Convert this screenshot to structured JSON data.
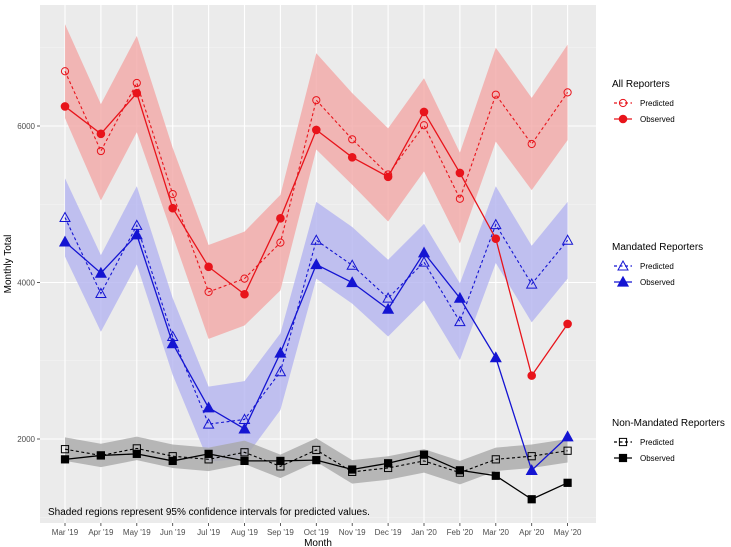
{
  "chart_data": {
    "type": "line",
    "xlabel": "Month",
    "ylabel": "Monthly Total",
    "categories": [
      "Mar '19",
      "Apr '19",
      "May '19",
      "Jun '19",
      "Jul '19",
      "Aug '19",
      "Sep '19",
      "Oct '19",
      "Nov '19",
      "Dec '19",
      "Jan '20",
      "Feb '20",
      "Mar '20",
      "Apr '20",
      "May '20"
    ],
    "y_ticks": [
      2000,
      4000,
      6000
    ],
    "y_tick_labels": [
      "2000",
      "4000",
      "6000"
    ],
    "ylim": [
      1000,
      7500
    ],
    "grid": true,
    "legend_position": "right",
    "annotation": "Shaded regions represent 95% confidence intervals for predicted values.",
    "groups": [
      {
        "name": "All Reporters",
        "color": "#e8141b",
        "band_color": "#f2a8a6",
        "marker": "circle",
        "predicted": [
          6700,
          5680,
          6550,
          5130,
          3880,
          4050,
          4510,
          6330,
          5830,
          5380,
          6010,
          5070,
          6400,
          5770,
          6430
        ],
        "observed": [
          6250,
          5900,
          6420,
          4950,
          4200,
          3850,
          4820,
          5950,
          5600,
          5350,
          6180,
          5400,
          4560,
          2810,
          3470
        ],
        "ci_lower": [
          6100,
          5050,
          5920,
          4600,
          3280,
          3450,
          3900,
          5700,
          5250,
          4780,
          5420,
          4500,
          5800,
          5180,
          5820
        ],
        "ci_upper": [
          7300,
          6280,
          7150,
          5720,
          4480,
          4650,
          5120,
          6930,
          6420,
          5970,
          6610,
          5660,
          7000,
          6360,
          7040
        ]
      },
      {
        "name": "Mandated Reporters",
        "color": "#1414d2",
        "band_color": "#b4b4f0",
        "marker": "triangle",
        "predicted": [
          4830,
          3860,
          4730,
          3310,
          2190,
          2250,
          2860,
          4540,
          4220,
          3800,
          4260,
          3500,
          4740,
          3980,
          4540
        ],
        "observed": [
          4520,
          4120,
          4610,
          3220,
          2400,
          2130,
          3100,
          4230,
          4000,
          3660,
          4380,
          3800,
          3040,
          1600,
          2030
        ],
        "ci_lower": [
          4330,
          3370,
          4230,
          2820,
          1710,
          1750,
          2370,
          4050,
          3730,
          3310,
          3770,
          3010,
          4250,
          3490,
          4050
        ],
        "ci_upper": [
          5330,
          4350,
          5230,
          3800,
          2670,
          2740,
          3350,
          5030,
          4710,
          4290,
          4750,
          3990,
          5230,
          4470,
          5030
        ]
      },
      {
        "name": "Non-Mandated Reporters",
        "color": "#000000",
        "band_color": "#a9a9a9",
        "marker": "square",
        "predicted": [
          1870,
          1790,
          1880,
          1780,
          1740,
          1830,
          1650,
          1860,
          1580,
          1630,
          1720,
          1570,
          1740,
          1780,
          1850
        ],
        "observed": [
          1740,
          1790,
          1810,
          1720,
          1810,
          1720,
          1720,
          1730,
          1610,
          1690,
          1800,
          1600,
          1530,
          1230,
          1440
        ],
        "ci_lower": [
          1720,
          1640,
          1730,
          1630,
          1590,
          1680,
          1500,
          1710,
          1430,
          1480,
          1570,
          1420,
          1590,
          1630,
          1700
        ],
        "ci_upper": [
          2020,
          1940,
          2030,
          1930,
          1890,
          1980,
          1800,
          2010,
          1730,
          1780,
          1870,
          1720,
          1890,
          1930,
          2000
        ]
      }
    ],
    "legend_labels": {
      "predicted": "Predicted",
      "observed": "Observed"
    }
  }
}
